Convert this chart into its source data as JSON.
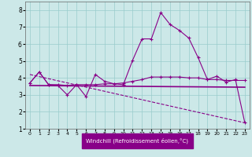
{
  "xlabel": "Windchill (Refroidissement éolien,°C)",
  "xlim": [
    -0.5,
    23.5
  ],
  "ylim": [
    1,
    8.5
  ],
  "yticks": [
    1,
    2,
    3,
    4,
    5,
    6,
    7,
    8
  ],
  "xticks": [
    0,
    1,
    2,
    3,
    4,
    5,
    6,
    7,
    8,
    9,
    10,
    11,
    12,
    13,
    14,
    15,
    16,
    17,
    18,
    19,
    20,
    21,
    22,
    23
  ],
  "background_color": "#cce8e8",
  "grid_color": "#99cccc",
  "line_color": "#880088",
  "line1_x": [
    0,
    1,
    2,
    3,
    4,
    5,
    6,
    7,
    8,
    9,
    10,
    11,
    12,
    13,
    14,
    15,
    16,
    17,
    18,
    19,
    20,
    21,
    22,
    23
  ],
  "line1_y": [
    3.7,
    4.35,
    3.6,
    3.55,
    3.0,
    3.6,
    2.9,
    4.2,
    3.8,
    3.65,
    3.6,
    5.05,
    6.3,
    6.3,
    7.85,
    7.15,
    6.8,
    6.35,
    5.2,
    3.9,
    4.1,
    3.75,
    3.9,
    1.35
  ],
  "line2_x": [
    0,
    1,
    2,
    3,
    4,
    5,
    6,
    7,
    8,
    9,
    10,
    11,
    12,
    13,
    14,
    15,
    16,
    17,
    18,
    19,
    20,
    21,
    22,
    23
  ],
  "line2_y": [
    3.7,
    4.35,
    3.6,
    3.6,
    3.55,
    3.6,
    3.6,
    3.6,
    3.65,
    3.65,
    3.7,
    3.8,
    3.9,
    4.05,
    4.05,
    4.05,
    4.05,
    4.0,
    4.0,
    3.9,
    3.9,
    3.85,
    3.85,
    3.85
  ],
  "line3_x": [
    0,
    23
  ],
  "line3_y": [
    3.55,
    3.45
  ],
  "line4_x": [
    0,
    23
  ],
  "line4_y": [
    4.2,
    1.35
  ],
  "xlabel_bg": "#880088",
  "xlabel_fg": "#ffffff"
}
